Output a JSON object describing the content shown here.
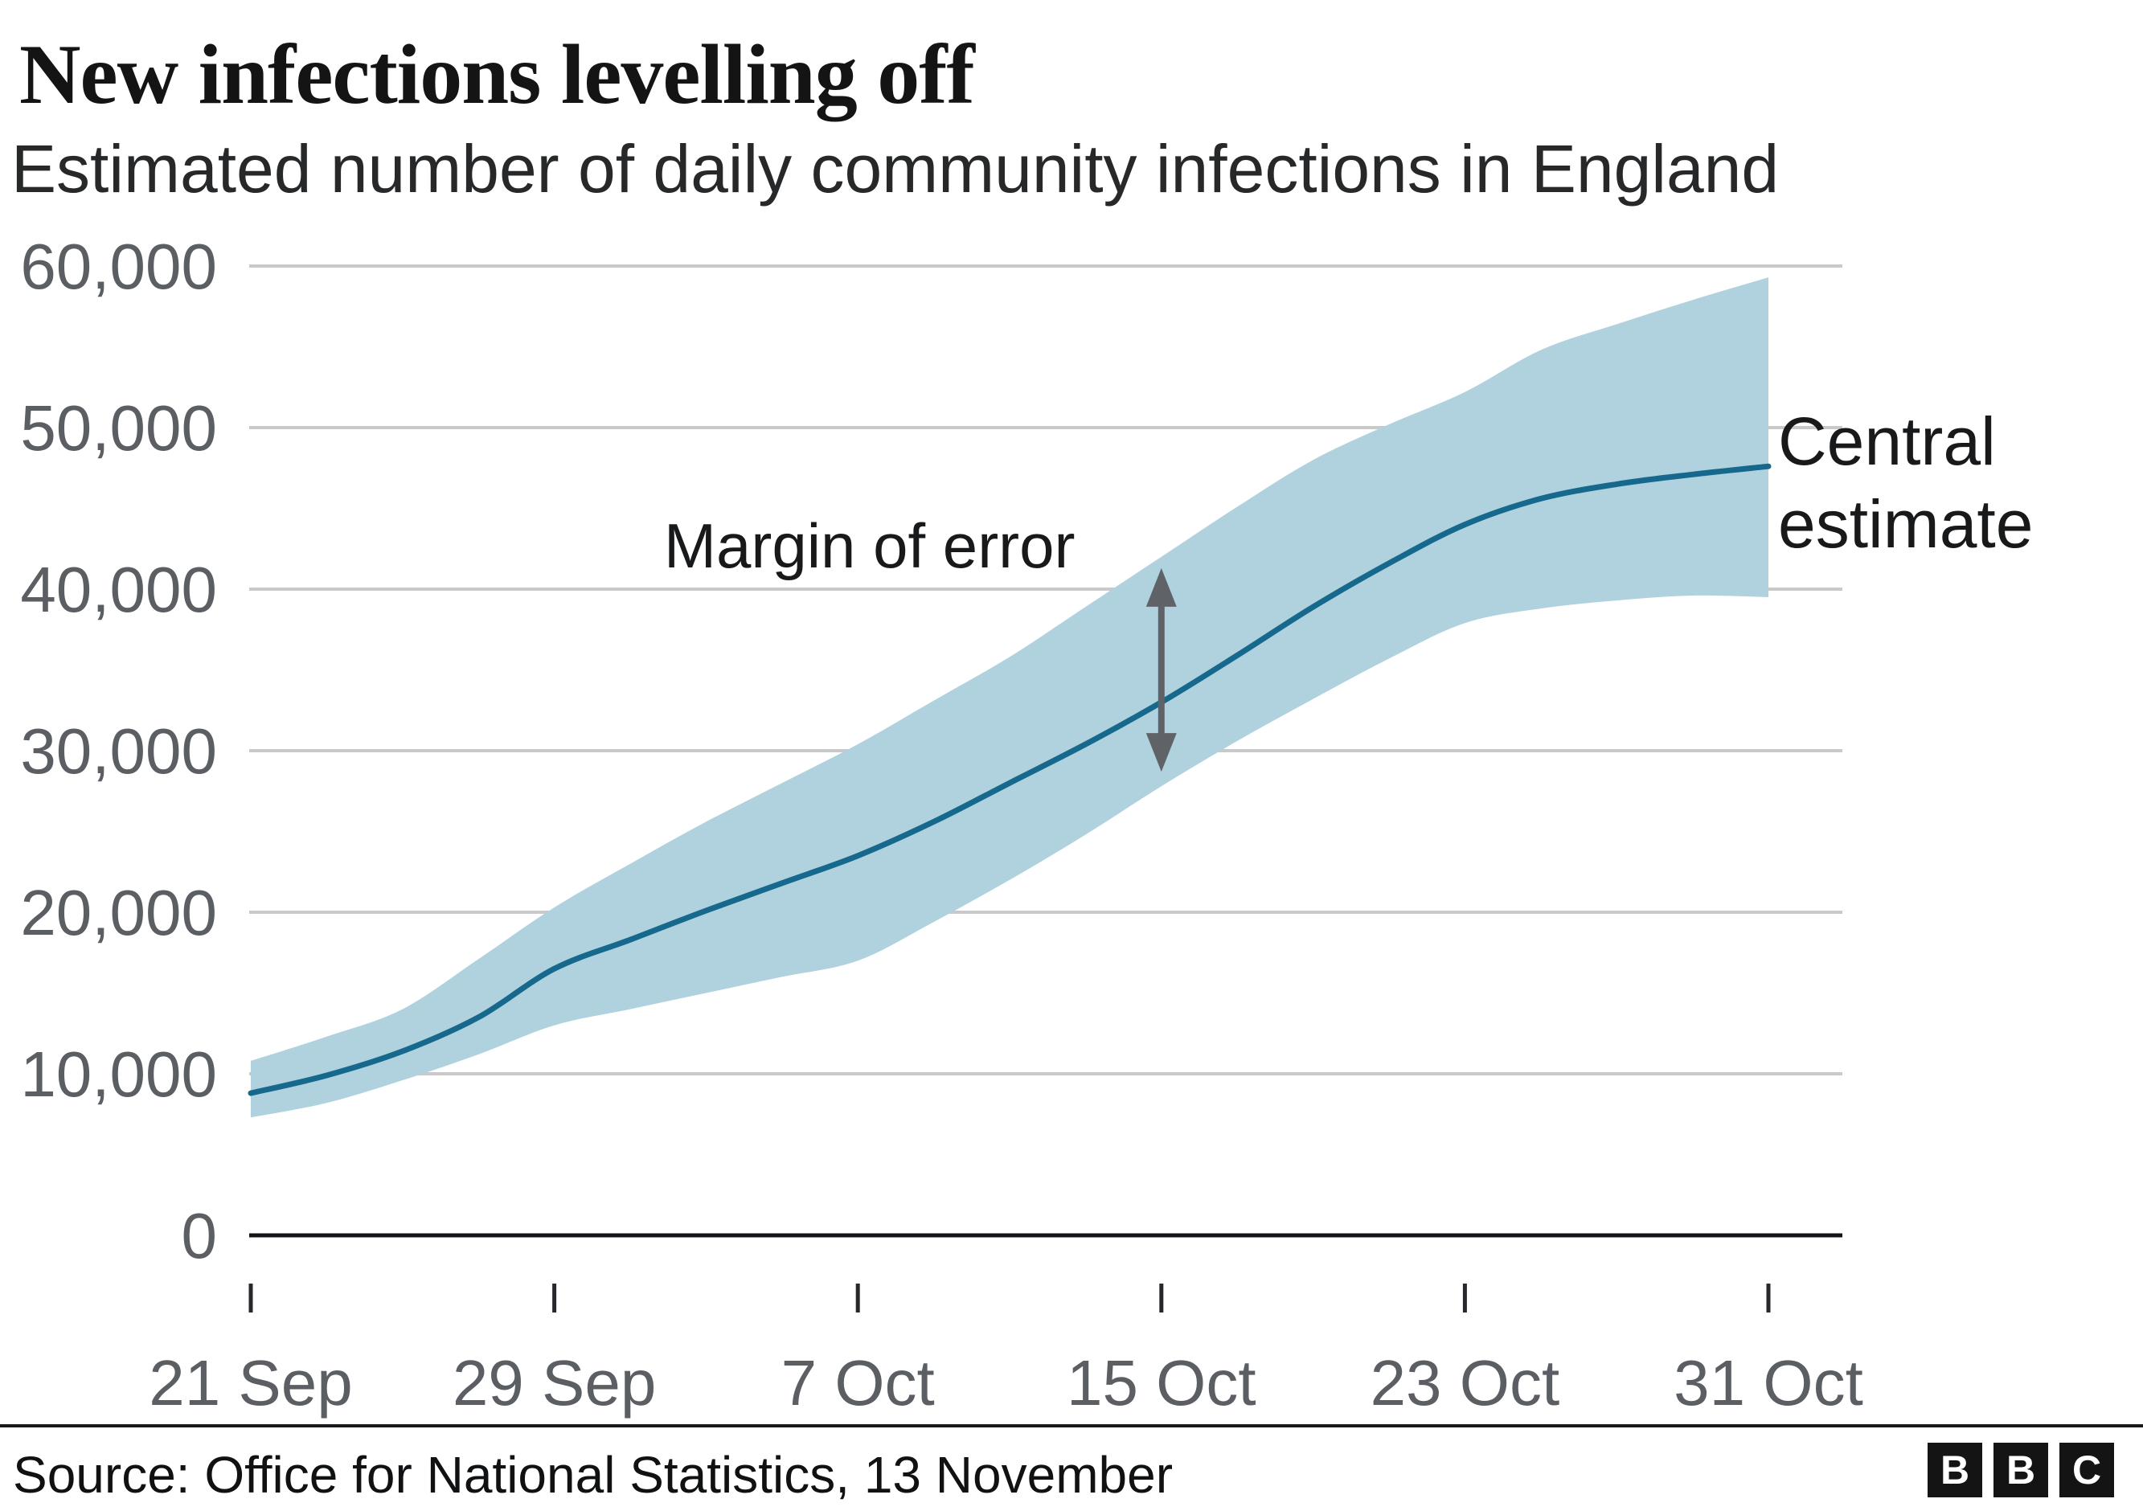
{
  "header": {
    "title": "New infections levelling off",
    "subtitle": "Estimated number of daily community infections in England"
  },
  "footer": {
    "source": "Source: Office for National Statistics, 13 November",
    "logo_letters": [
      "B",
      "B",
      "C"
    ]
  },
  "chart_data": {
    "type": "line",
    "title": "New infections levelling off",
    "subtitle": "Estimated number of daily community infections in England",
    "xlabel": "",
    "ylabel": "",
    "ylim": [
      0,
      60000
    ],
    "x_range_days": [
      0,
      40
    ],
    "grid": true,
    "legend_position": "none",
    "y_ticks": [
      {
        "value": 0,
        "label": "0"
      },
      {
        "value": 10000,
        "label": "10,000"
      },
      {
        "value": 20000,
        "label": "20,000"
      },
      {
        "value": 30000,
        "label": "30,000"
      },
      {
        "value": 40000,
        "label": "40,000"
      },
      {
        "value": 50000,
        "label": "50,000"
      },
      {
        "value": 60000,
        "label": "60,000"
      }
    ],
    "x_ticks": [
      {
        "day": 0,
        "label": "21 Sep"
      },
      {
        "day": 8,
        "label": "29 Sep"
      },
      {
        "day": 16,
        "label": "7 Oct"
      },
      {
        "day": 24,
        "label": "15 Oct"
      },
      {
        "day": 32,
        "label": "23 Oct"
      },
      {
        "day": 40,
        "label": "31 Oct"
      }
    ],
    "days": [
      0,
      2,
      4,
      6,
      8,
      10,
      12,
      14,
      16,
      18,
      20,
      22,
      24,
      26,
      28,
      30,
      32,
      34,
      36,
      38,
      40
    ],
    "series": [
      {
        "name": "Central estimate",
        "values": [
          8800,
          9900,
          11400,
          13500,
          16500,
          18300,
          20100,
          21800,
          23500,
          25600,
          28000,
          30400,
          33000,
          35900,
          38900,
          41600,
          44000,
          45600,
          46500,
          47100,
          47600
        ]
      },
      {
        "name": "Lower bound of margin of error",
        "values": [
          7300,
          8200,
          9600,
          11200,
          13000,
          14000,
          15000,
          16000,
          17000,
          19400,
          22000,
          24800,
          27800,
          30600,
          33200,
          35700,
          37900,
          38800,
          39300,
          39600,
          39500
        ]
      },
      {
        "name": "Upper bound of margin of error",
        "values": [
          10800,
          12300,
          14000,
          17100,
          20300,
          23000,
          25600,
          28000,
          30400,
          33100,
          35800,
          38900,
          42000,
          45100,
          48000,
          50200,
          52200,
          54800,
          56400,
          57900,
          59300
        ]
      }
    ],
    "annotations": {
      "margin_of_error": {
        "text": "Margin of error",
        "arrow_day": 24,
        "arrow_from": 28700,
        "arrow_to": 41300
      },
      "central_estimate": {
        "line1": "Central",
        "line2": "estimate"
      }
    },
    "colors": {
      "band": "#afd2de",
      "line": "#16698c",
      "grid": "#c9c9c9",
      "axis": "#121417",
      "tick": "#26282b",
      "tick_label": "#5b5e63",
      "arrow": "#5f6367",
      "annotation_text": "#17191b"
    }
  }
}
